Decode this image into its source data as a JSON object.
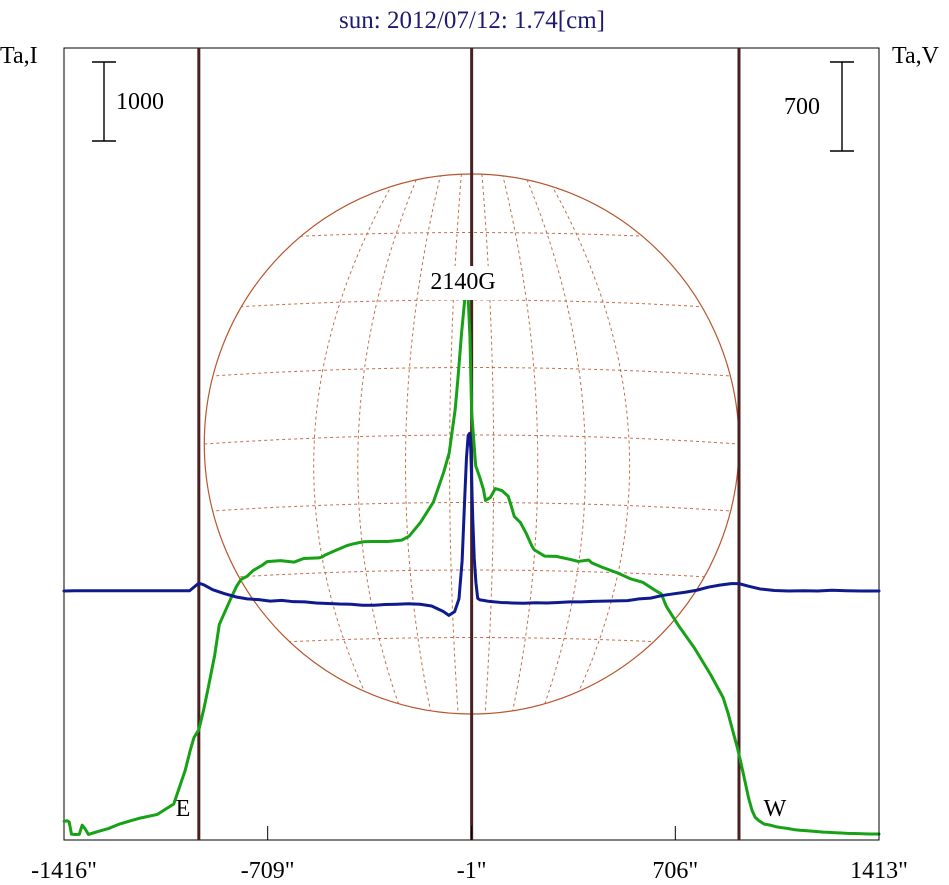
{
  "chart_data": {
    "type": "line",
    "title": "sun: 2012/07/12: 1.74[cm]",
    "xlabel": "",
    "y_left_label": "Ta,I",
    "y_right_label": "Ta,V",
    "x_ticks": [
      {
        "value": -1416,
        "label": "-1416\""
      },
      {
        "value": -709,
        "label": "-709\""
      },
      {
        "value": -1,
        "label": "-1\""
      },
      {
        "value": 706,
        "label": "706\""
      },
      {
        "value": 1413,
        "label": "1413\""
      }
    ],
    "scale_bar_left": {
      "value": 1000,
      "label": "1000",
      "units_per_bar": 1000
    },
    "scale_bar_right": {
      "value": 700,
      "label": "700",
      "units_per_bar": 700
    },
    "vertical_lines_arcsec": [
      -948,
      -1,
      927
    ],
    "east_label": "E",
    "west_label": "W",
    "annotation": "2140G",
    "annotation_x": -1,
    "colors": {
      "intensity": "#17a117",
      "polarization": "#0f1a8c",
      "limb_lines": "#4a1f1f",
      "disk": "#b8562e",
      "frame": "#000000",
      "title": "#1e1a73"
    },
    "disk_radius_arcsec": 927,
    "series": [
      {
        "name": "Ta,I",
        "x": [
          -1416,
          -1405,
          -1398,
          -1390,
          -1378,
          -1363,
          -1353,
          -1343,
          -1331,
          -1305,
          -1262,
          -1222,
          -1158,
          -1092,
          -1035,
          -995,
          -978,
          -965,
          -948,
          -930,
          -913,
          -893,
          -877,
          -860,
          -836,
          -817,
          -802,
          -780,
          -759,
          -728,
          -711,
          -665,
          -617,
          -584,
          -532,
          -521,
          -510,
          -472,
          -433,
          -408,
          -375,
          -348,
          -323,
          -291,
          -244,
          -218,
          -179,
          -134,
          -98,
          -79,
          -58,
          -48,
          -36,
          -26,
          -17,
          -7,
          -1,
          13,
          28,
          40,
          47,
          64,
          81,
          104,
          126,
          137,
          147,
          168,
          187,
          209,
          216,
          252,
          293,
          345,
          369,
          405,
          416,
          451,
          506,
          551,
          594,
          638,
          657,
          675,
          719,
          772,
          829,
          872,
          889,
          905,
          922,
          935,
          947,
          960,
          972,
          983,
          996,
          1014,
          1033,
          1055,
          1076,
          1097,
          1117,
          1138,
          1158,
          1179,
          1200,
          1220,
          1241,
          1262,
          1282,
          1303,
          1324,
          1344,
          1365,
          1385,
          1413
        ],
        "y": [
          160,
          168,
          152,
          -2,
          -6,
          -4,
          112,
          67,
          -6,
          24,
          69,
          128,
          196,
          248,
          380,
          810,
          1056,
          1220,
          1320,
          1592,
          1895,
          2262,
          2652,
          2792,
          2988,
          3136,
          3220,
          3264,
          3336,
          3402,
          3448,
          3460,
          3442,
          3487,
          3495,
          3506,
          3530,
          3592,
          3652,
          3676,
          3700,
          3702,
          3702,
          3702,
          3720,
          3770,
          3942,
          4200,
          4580,
          4822,
          5378,
          5792,
          6340,
          6724,
          7102,
          6300,
          5340,
          4662,
          4506,
          4360,
          4222,
          4260,
          4372,
          4348,
          4274,
          4144,
          4020,
          3944,
          3816,
          3640,
          3598,
          3518,
          3514,
          3472,
          3450,
          3468,
          3432,
          3378,
          3304,
          3230,
          3184,
          3080,
          3040,
          2880,
          2628,
          2356,
          2014,
          1726,
          1530,
          1312,
          1084,
          880,
          680,
          460,
          302,
          212,
          170,
          126,
          114,
          92,
          80,
          70,
          56,
          48,
          42,
          36,
          30,
          24,
          20,
          16,
          12,
          8,
          6,
          4,
          2,
          0,
          0
        ]
      },
      {
        "name": "Ta,V",
        "x": [
          -1416,
          -1380,
          -1340,
          -1300,
          -1260,
          -1220,
          -1180,
          -1140,
          -1100,
          -1060,
          -1020,
          -980,
          -948,
          -930,
          -900,
          -860,
          -820,
          -780,
          -740,
          -700,
          -660,
          -620,
          -580,
          -540,
          -500,
          -460,
          -420,
          -380,
          -340,
          -300,
          -260,
          -220,
          -180,
          -140,
          -100,
          -80,
          -60,
          -45,
          -34,
          -26,
          -19,
          -13,
          -8,
          -4,
          -1,
          3,
          8,
          14,
          20,
          28,
          40,
          60,
          100,
          140,
          180,
          220,
          260,
          300,
          340,
          380,
          420,
          460,
          500,
          540,
          580,
          620,
          660,
          700,
          740,
          780,
          820,
          860,
          900,
          927,
          960,
          1000,
          1050,
          1100,
          1150,
          1200,
          1250,
          1300,
          1350,
          1413
        ],
        "y": [
          0,
          2,
          2,
          2,
          2,
          2,
          2,
          2,
          2,
          2,
          2,
          2,
          62,
          48,
          10,
          -20,
          -46,
          -62,
          -68,
          -80,
          -74,
          -84,
          -86,
          -94,
          -98,
          -102,
          -104,
          -112,
          -112,
          -106,
          -104,
          -100,
          -104,
          -118,
          -160,
          -192,
          -162,
          -62,
          238,
          678,
          1046,
          1224,
          1240,
          1116,
          872,
          558,
          258,
          62,
          -58,
          -70,
          -74,
          -82,
          -90,
          -94,
          -96,
          -92,
          -94,
          -90,
          -86,
          -86,
          -82,
          -80,
          -78,
          -76,
          -62,
          -56,
          -36,
          -22,
          -10,
          6,
          30,
          46,
          58,
          58,
          38,
          16,
          4,
          0,
          2,
          0,
          6,
          2,
          0,
          0
        ]
      }
    ]
  }
}
